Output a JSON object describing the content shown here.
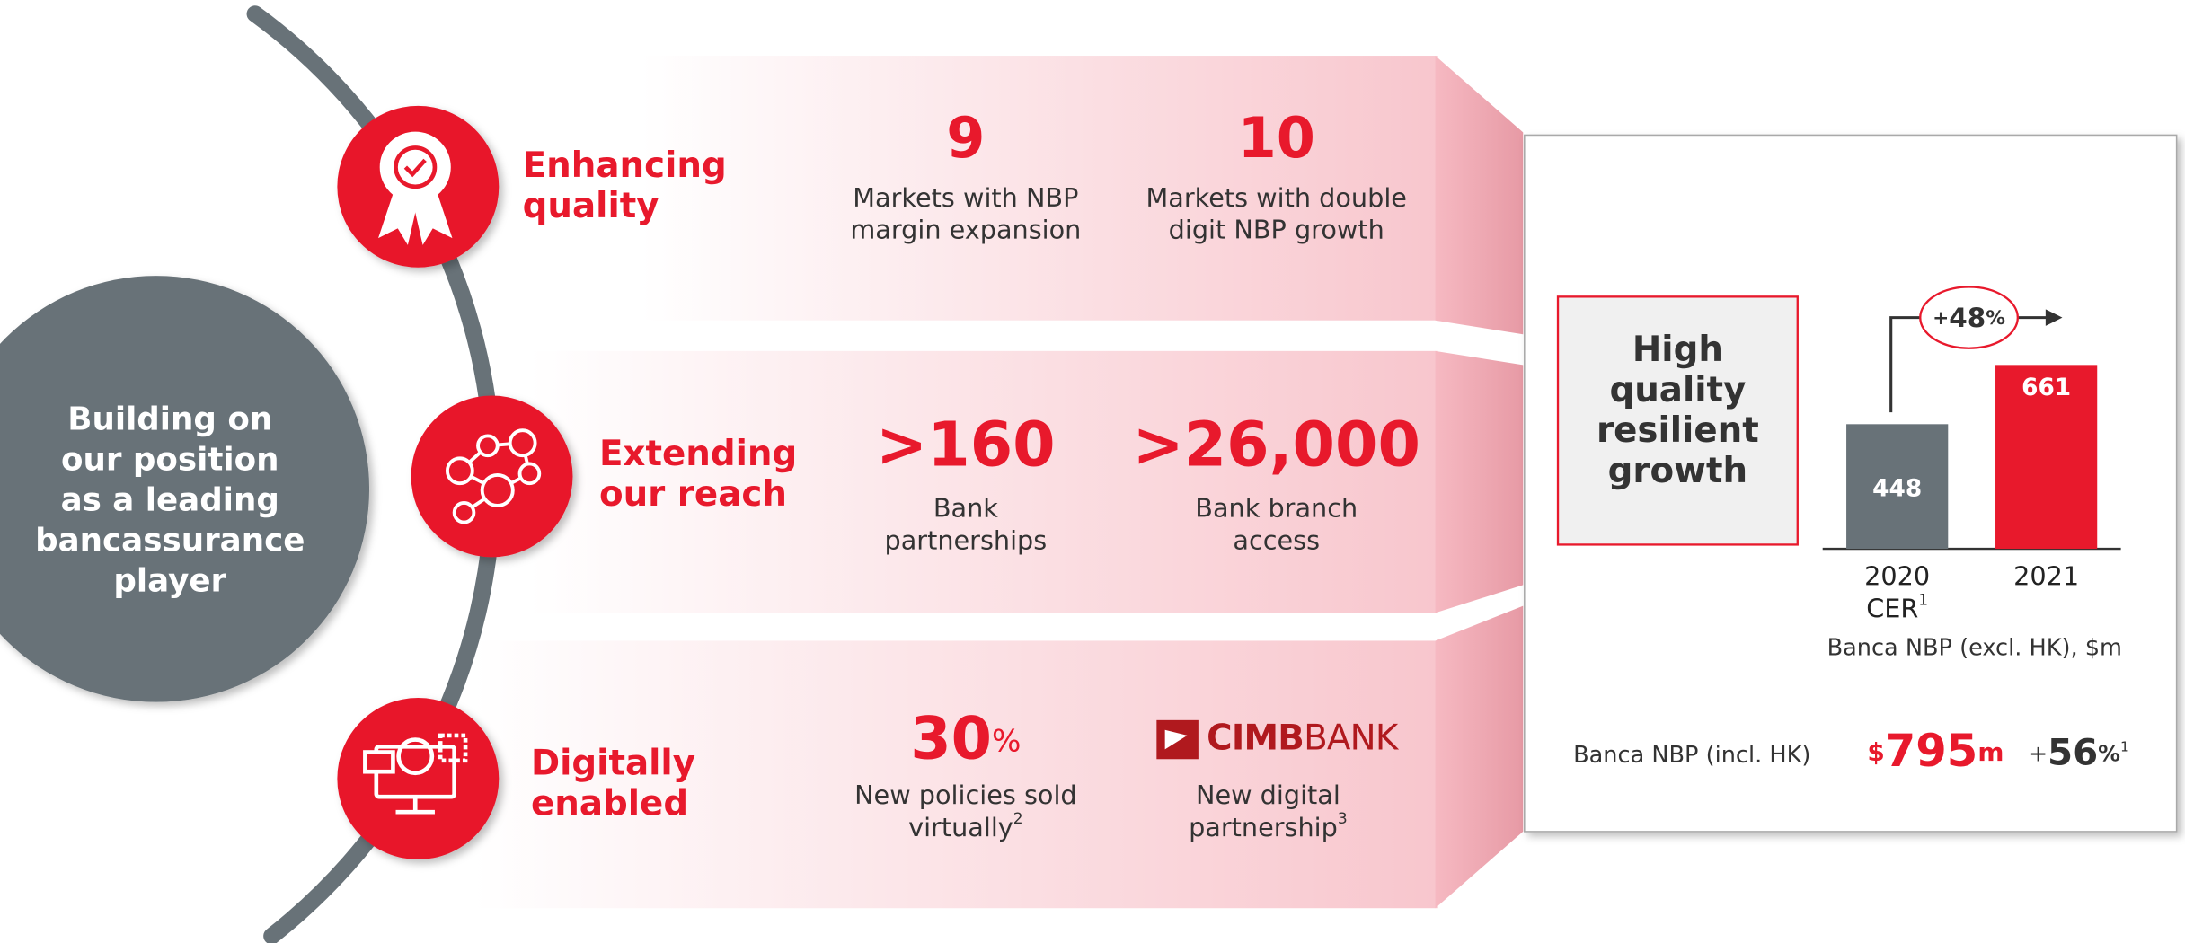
{
  "center_text": [
    "Building on",
    "our position",
    "as a leading",
    "bancassurance",
    "player"
  ],
  "pillars": [
    {
      "title": [
        "Enhancing",
        "quality"
      ],
      "stats": [
        {
          "value": "9",
          "caption": [
            "Markets with NBP",
            "margin expansion"
          ]
        },
        {
          "value": "10",
          "caption": [
            "Markets with double",
            "digit NBP growth"
          ]
        }
      ]
    },
    {
      "title": [
        "Extending",
        "our reach"
      ],
      "stats": [
        {
          "value": ">160",
          "caption": [
            "Bank",
            "partnerships"
          ]
        },
        {
          "value": ">26,000",
          "caption": [
            "Bank branch",
            "access"
          ]
        }
      ]
    },
    {
      "title": [
        "Digitally",
        "enabled"
      ],
      "stats": [
        {
          "value": "30",
          "unit": "%",
          "caption": [
            "New policies sold",
            "virtually"
          ],
          "footnote": "2"
        },
        {
          "logo": [
            "CIMB",
            "BANK"
          ],
          "caption": [
            "New digital",
            "partnership"
          ],
          "footnote": "3"
        }
      ]
    }
  ],
  "highlight": {
    "box": [
      "High",
      "quality",
      "resilient",
      "growth"
    ],
    "chart": {
      "bars": [
        {
          "label": "2020",
          "sublabel": "CER",
          "footnote": "1",
          "value": 448,
          "color": "#687278"
        },
        {
          "label": "2021",
          "value": 661,
          "color": "#e8192c"
        }
      ],
      "growth": {
        "sign": "+",
        "value": "48",
        "unit": "%"
      },
      "caption": "Banca NBP (excl. HK), $m"
    },
    "total": {
      "label": "Banca NBP (incl. HK)",
      "prefix": "$",
      "value": "795",
      "unit": "m",
      "growth_sign": "+",
      "growth": "56",
      "growth_unit": "%",
      "footnote": "1"
    }
  }
}
